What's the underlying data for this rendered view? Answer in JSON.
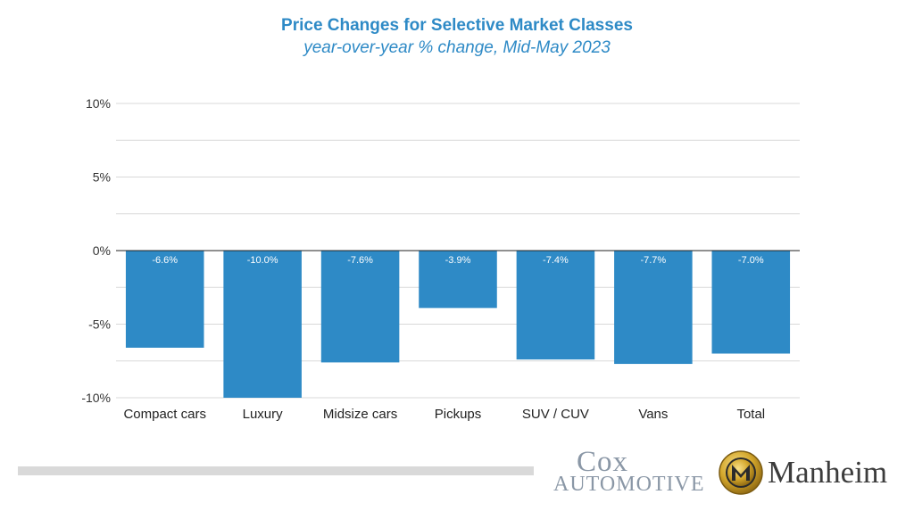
{
  "chart_data": {
    "type": "bar",
    "title": "Price Changes for Selective Market Classes",
    "subtitle": "year-over-year % change, Mid-May 2023",
    "categories": [
      "Compact cars",
      "Luxury",
      "Midsize cars",
      "Pickups",
      "SUV / CUV",
      "Vans",
      "Total"
    ],
    "values": [
      -6.6,
      -10.0,
      -7.6,
      -3.9,
      -7.4,
      -7.7,
      -7.0
    ],
    "data_labels": [
      "-6.6%",
      "-10.0%",
      "-7.6%",
      "-3.9%",
      "-7.4%",
      "-7.7%",
      "-7.0%"
    ],
    "ylim": [
      -10,
      10
    ],
    "yticks": [
      10,
      5,
      0,
      -5,
      -10
    ],
    "ytick_labels": [
      "10%",
      "5%",
      "0%",
      "-5%",
      "-10%"
    ],
    "xlabel": "",
    "ylabel": "",
    "grid": true,
    "bar_color": "#2e8ac6"
  },
  "branding": {
    "cox_top": "Cox",
    "cox_bottom": "AUTOMOTIVE",
    "manheim": "Manheim"
  },
  "colors": {
    "title": "#2e8ac6",
    "grid": "#d9d9d9",
    "axis": "#333333"
  }
}
